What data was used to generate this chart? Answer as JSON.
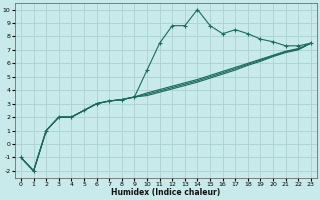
{
  "xlabel": "Humidex (Indice chaleur)",
  "background_color": "#c8eaea",
  "grid_color": "#aed4d4",
  "line_color": "#1a6b5a",
  "xlim": [
    -0.5,
    23.5
  ],
  "ylim": [
    -2.5,
    10.5
  ],
  "xticks": [
    0,
    1,
    2,
    3,
    4,
    5,
    6,
    7,
    8,
    9,
    10,
    11,
    12,
    13,
    14,
    15,
    16,
    17,
    18,
    19,
    20,
    21,
    22,
    23
  ],
  "yticks": [
    -2,
    -1,
    0,
    1,
    2,
    3,
    4,
    5,
    6,
    7,
    8,
    9,
    10
  ],
  "series": [
    {
      "x": [
        0,
        1,
        2,
        3,
        4,
        5,
        6,
        7,
        8,
        9,
        10,
        11,
        12,
        13,
        14,
        15,
        16,
        17,
        18,
        19,
        20,
        21,
        22,
        23
      ],
      "y": [
        -1,
        -2,
        1,
        2,
        2,
        2.5,
        3,
        3.2,
        3.3,
        3.5,
        5.5,
        7.5,
        8.8,
        8.8,
        10,
        8.8,
        8.2,
        8.5,
        8.2,
        7.8,
        7.6,
        7.3,
        7.3,
        7.5
      ],
      "marker": "+"
    },
    {
      "x": [
        0,
        1,
        2,
        3,
        4,
        5,
        6,
        7,
        8,
        9,
        10,
        11,
        12,
        13,
        14,
        15,
        16,
        17,
        18,
        19,
        20,
        21,
        22,
        23
      ],
      "y": [
        -1,
        -2,
        1,
        2,
        2,
        2.5,
        3,
        3.2,
        3.3,
        3.5,
        3.8,
        4.05,
        4.3,
        4.55,
        4.8,
        5.1,
        5.4,
        5.7,
        6.0,
        6.3,
        6.6,
        6.9,
        7.1,
        7.5
      ],
      "marker": null
    },
    {
      "x": [
        0,
        1,
        2,
        3,
        4,
        5,
        6,
        7,
        8,
        9,
        10,
        11,
        12,
        13,
        14,
        15,
        16,
        17,
        18,
        19,
        20,
        21,
        22,
        23
      ],
      "y": [
        -1,
        -2,
        1,
        2,
        2,
        2.5,
        3,
        3.2,
        3.3,
        3.5,
        3.6,
        3.85,
        4.1,
        4.35,
        4.6,
        4.9,
        5.2,
        5.5,
        5.85,
        6.15,
        6.5,
        6.8,
        7.0,
        7.5
      ],
      "marker": null
    },
    {
      "x": [
        0,
        1,
        2,
        3,
        4,
        5,
        6,
        7,
        8,
        9,
        10,
        11,
        12,
        13,
        14,
        15,
        16,
        17,
        18,
        19,
        20,
        21,
        22,
        23
      ],
      "y": [
        -1,
        -2,
        1,
        2,
        2,
        2.5,
        3,
        3.2,
        3.3,
        3.5,
        3.7,
        3.95,
        4.2,
        4.45,
        4.7,
        5.0,
        5.3,
        5.6,
        5.93,
        6.23,
        6.55,
        6.85,
        7.05,
        7.5
      ],
      "marker": null
    }
  ]
}
